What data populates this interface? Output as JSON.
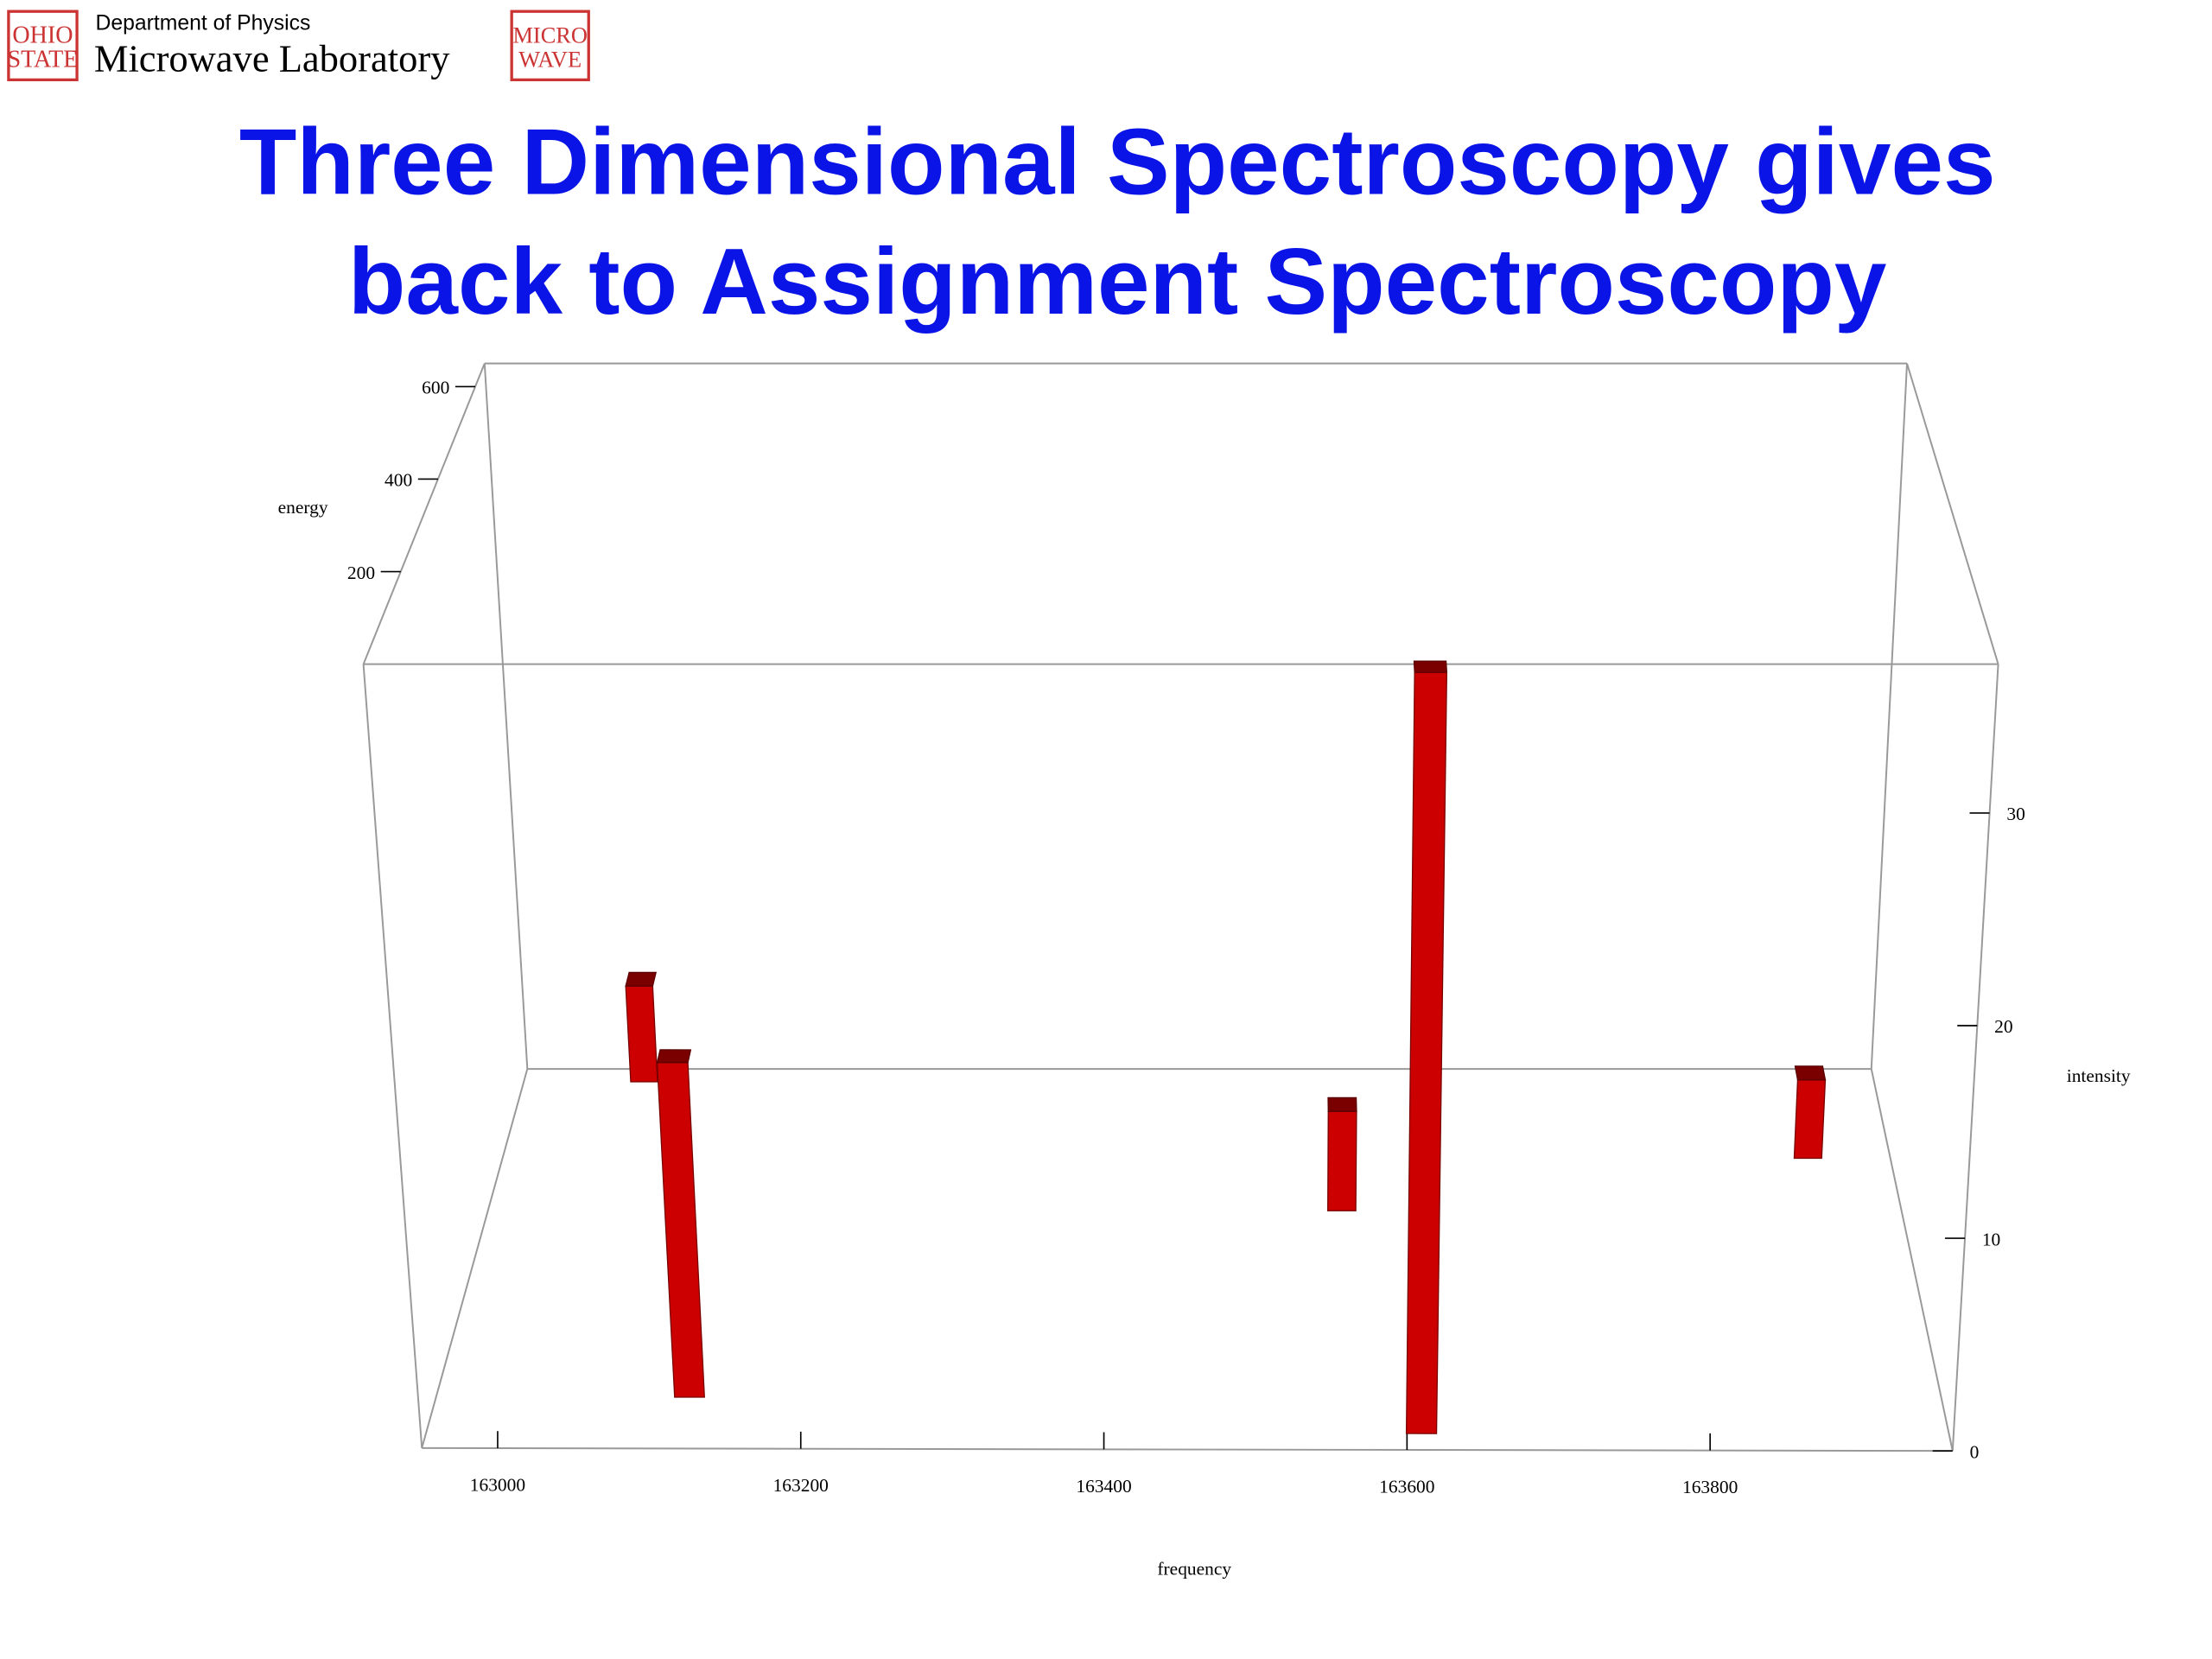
{
  "slide": {
    "department": "Department of Physics",
    "lab": "Microwave Laboratory",
    "logo_left": [
      "OHIO",
      "STATE"
    ],
    "logo_right": [
      "MICRO",
      "WAVE"
    ],
    "title": [
      "Three Dimensional Spectroscopy  gives",
      "back to Assignment Spectroscopy"
    ]
  },
  "chart_data": {
    "type": "bar3d",
    "color": "#cc0000",
    "x": [
      163040,
      163120,
      163560,
      163610,
      163900
    ],
    "z": [
      640,
      100,
      420,
      40,
      510
    ],
    "values": [
      5,
      16,
      5,
      36,
      4
    ],
    "xlim": [
      162950,
      163960
    ],
    "ylim": [
      0,
      37
    ],
    "zlim": [
      0,
      650
    ],
    "xticks": [
      163000,
      163200,
      163400,
      163600,
      163800
    ],
    "yticks": [
      0,
      10,
      20,
      30
    ],
    "zticks": [
      200,
      400,
      600
    ],
    "xlabel": "frequency",
    "ylabel": "intensity",
    "zlabel": "energy"
  }
}
